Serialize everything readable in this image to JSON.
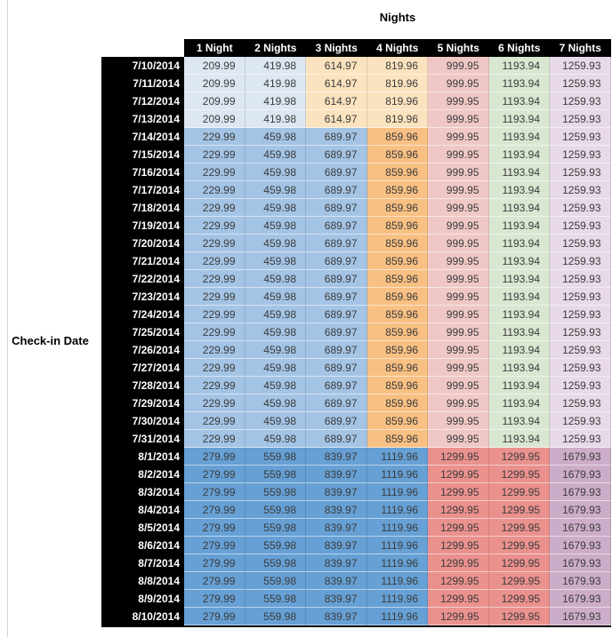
{
  "colors": {
    "blue_light": "#DCE7F2",
    "blue_mid": "#A4C4E5",
    "blue_deep": "#66A0D5",
    "orange_light": "#FBE3BF",
    "orange_mid": "#F8C083",
    "red_light": "#EFC8C6",
    "red_mid": "#EA918E",
    "green_light": "#D9E7D1",
    "purple_light": "#E7D9E7",
    "purple_mid": "#CCADC9",
    "header_bg": "#000000",
    "header_fg": "#FFFFFF",
    "value_fg": "#3B3B3B"
  },
  "chart_data": {
    "type": "table",
    "title": "Nights",
    "row_axis_label": "Check-in Date",
    "columns": [
      "1 Night",
      "2 Nights",
      "3 Nights",
      "4 Nights",
      "5 Nights",
      "6 Nights",
      "7 Nights"
    ],
    "bands": {
      "early": {
        "values": [
          "209.99",
          "419.98",
          "614.97",
          "819.96",
          "999.95",
          "1193.94",
          "1259.93"
        ],
        "colors": [
          "blue_light",
          "blue_light",
          "orange_light",
          "orange_light",
          "red_light",
          "green_light",
          "purple_light"
        ]
      },
      "mid": {
        "values": [
          "229.99",
          "459.98",
          "689.97",
          "859.96",
          "999.95",
          "1193.94",
          "1259.93"
        ],
        "colors": [
          "blue_mid",
          "blue_mid",
          "blue_mid",
          "orange_mid",
          "red_light",
          "green_light",
          "purple_light"
        ]
      },
      "late": {
        "values": [
          "279.99",
          "559.98",
          "839.97",
          "1119.96",
          "1299.95",
          "1299.95",
          "1679.93"
        ],
        "colors": [
          "blue_deep",
          "blue_deep",
          "blue_deep",
          "blue_deep",
          "red_mid",
          "red_mid",
          "purple_mid"
        ]
      }
    },
    "rows": [
      {
        "date": "7/10/2014",
        "band": "early"
      },
      {
        "date": "7/11/2014",
        "band": "early"
      },
      {
        "date": "7/12/2014",
        "band": "early"
      },
      {
        "date": "7/13/2014",
        "band": "early"
      },
      {
        "date": "7/14/2014",
        "band": "mid"
      },
      {
        "date": "7/15/2014",
        "band": "mid"
      },
      {
        "date": "7/16/2014",
        "band": "mid"
      },
      {
        "date": "7/17/2014",
        "band": "mid"
      },
      {
        "date": "7/18/2014",
        "band": "mid"
      },
      {
        "date": "7/19/2014",
        "band": "mid"
      },
      {
        "date": "7/20/2014",
        "band": "mid"
      },
      {
        "date": "7/21/2014",
        "band": "mid"
      },
      {
        "date": "7/22/2014",
        "band": "mid"
      },
      {
        "date": "7/23/2014",
        "band": "mid"
      },
      {
        "date": "7/24/2014",
        "band": "mid"
      },
      {
        "date": "7/25/2014",
        "band": "mid"
      },
      {
        "date": "7/26/2014",
        "band": "mid"
      },
      {
        "date": "7/27/2014",
        "band": "mid"
      },
      {
        "date": "7/28/2014",
        "band": "mid"
      },
      {
        "date": "7/29/2014",
        "band": "mid"
      },
      {
        "date": "7/30/2014",
        "band": "mid"
      },
      {
        "date": "7/31/2014",
        "band": "mid"
      },
      {
        "date": "8/1/2014",
        "band": "late"
      },
      {
        "date": "8/2/2014",
        "band": "late"
      },
      {
        "date": "8/3/2014",
        "band": "late"
      },
      {
        "date": "8/4/2014",
        "band": "late"
      },
      {
        "date": "8/5/2014",
        "band": "late"
      },
      {
        "date": "8/6/2014",
        "band": "late"
      },
      {
        "date": "8/7/2014",
        "band": "late"
      },
      {
        "date": "8/8/2014",
        "band": "late"
      },
      {
        "date": "8/9/2014",
        "band": "late"
      },
      {
        "date": "8/10/2014",
        "band": "late"
      }
    ]
  }
}
